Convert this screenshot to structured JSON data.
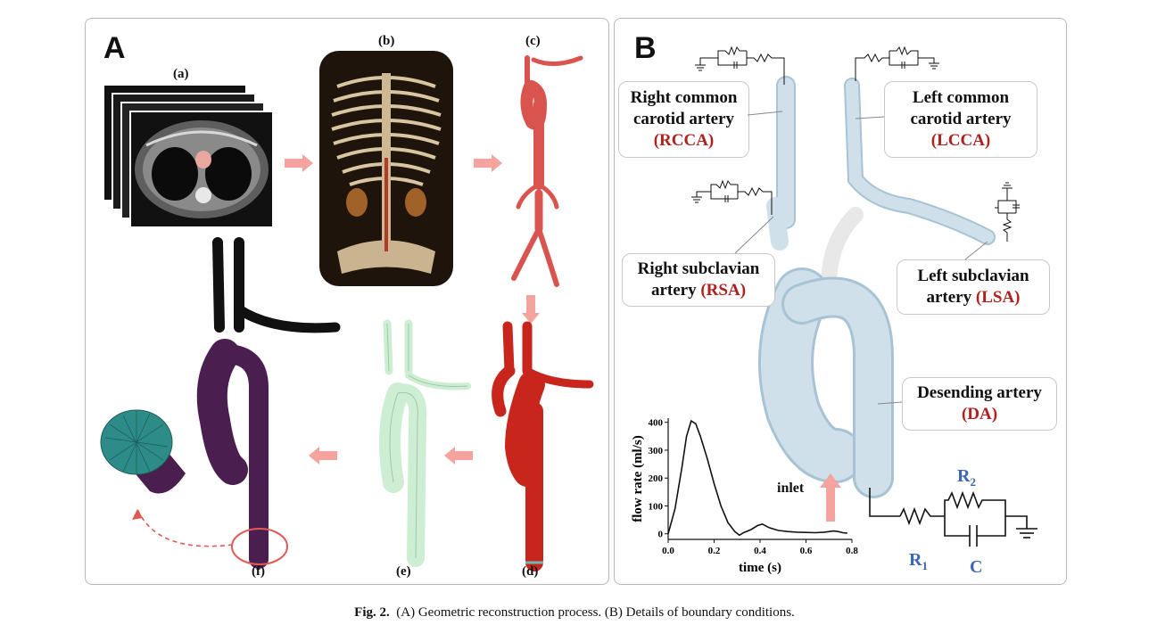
{
  "panel_a": {
    "letter": "A",
    "labels": {
      "a": "(a)",
      "b": "(b)",
      "c": "(c)",
      "d": "(d)",
      "e": "(e)",
      "f": "(f)"
    }
  },
  "panel_b": {
    "letter": "B",
    "callouts": {
      "rcca_name_1": "Right common",
      "rcca_name_2": "carotid artery",
      "rcca_abbr": "(RCCA)",
      "lcca_name_1": "Left common",
      "lcca_name_2": "carotid artery",
      "lcca_abbr": "(LCCA)",
      "rsa_name_1": "Right subclavian",
      "rsa_name_2": "artery",
      "rsa_abbr": "(RSA)",
      "lsa_name_1": "Left subclavian",
      "lsa_name_2": "artery",
      "lsa_abbr": "(LSA)",
      "da_name": "Desending artery",
      "da_abbr": "(DA)"
    },
    "inlet_label": "inlet",
    "circuit": {
      "r1": "R",
      "r1_sub": "1",
      "r2": "R",
      "r2_sub": "2",
      "c": "C"
    }
  },
  "colors": {
    "accent_red": "#b0201d",
    "circuit_blue": "#3b67b4",
    "vessel_blue": "#cfe0ea",
    "vessel_red": "#c8261c",
    "vessel_green": "#cdeed3",
    "vessel_purple": "#4a1e4f"
  },
  "chart_data": {
    "type": "line",
    "title": "",
    "xlabel": "time (s)",
    "ylabel": "flow rate (ml/s)",
    "xlim": [
      0,
      0.8
    ],
    "ylim": [
      0,
      400
    ],
    "xticks": [
      "0.0",
      "0.2",
      "0.4",
      "0.6",
      "0.8"
    ],
    "yticks": [
      "0",
      "100",
      "200",
      "300",
      "400"
    ],
    "series": [
      {
        "x": [
          0.0,
          0.03,
          0.06,
          0.08,
          0.1,
          0.12,
          0.14,
          0.17,
          0.2,
          0.23,
          0.26,
          0.29,
          0.31,
          0.33,
          0.36,
          0.39,
          0.41,
          0.44,
          0.48,
          0.52,
          0.56,
          0.6,
          0.64,
          0.68,
          0.72,
          0.74,
          0.76,
          0.78
        ],
        "y": [
          0,
          90,
          240,
          350,
          405,
          395,
          350,
          270,
          180,
          100,
          40,
          8,
          -5,
          5,
          15,
          30,
          35,
          22,
          12,
          8,
          6,
          5,
          4,
          6,
          10,
          8,
          4,
          2
        ]
      }
    ]
  },
  "caption": {
    "label": "Fig. 2.",
    "text": "(A) Geometric reconstruction process. (B) Details of boundary conditions."
  }
}
